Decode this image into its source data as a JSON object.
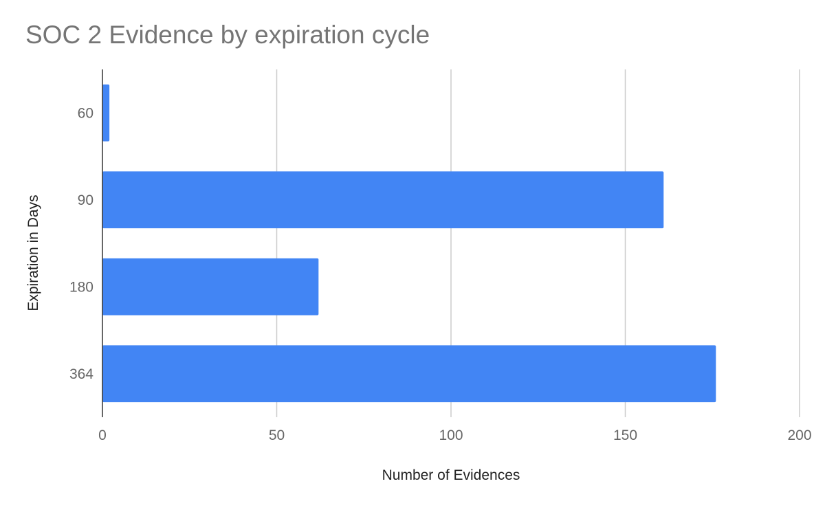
{
  "chart_data": {
    "type": "bar",
    "orientation": "horizontal",
    "title": "SOC 2 Evidence by expiration cycle",
    "xlabel": "Number of Evidences",
    "ylabel": "Expiration in Days",
    "categories": [
      "60",
      "90",
      "180",
      "364"
    ],
    "values": [
      2,
      161,
      62,
      176
    ],
    "xlim": [
      0,
      200
    ],
    "xticks": [
      "0",
      "50",
      "100",
      "150",
      "200"
    ],
    "grid": true,
    "legend": "none",
    "bar_color": "#4285f4"
  }
}
